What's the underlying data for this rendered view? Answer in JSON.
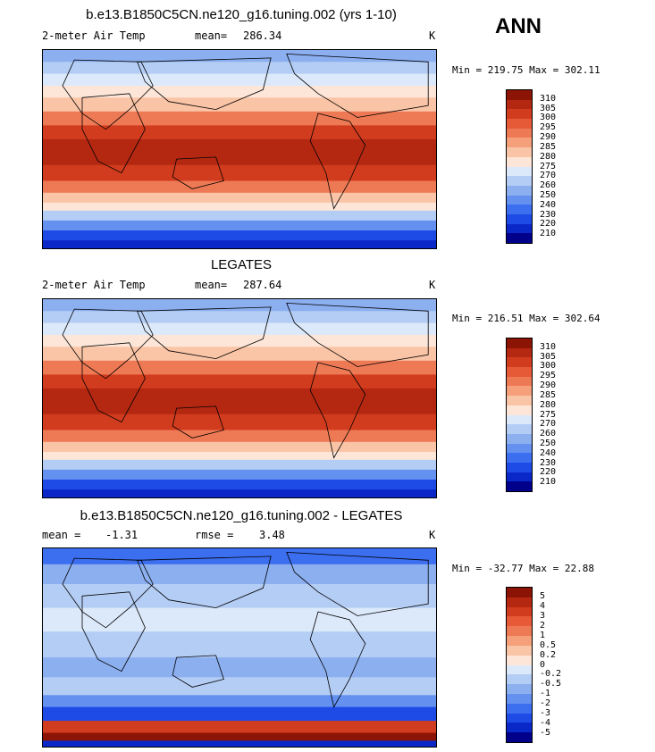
{
  "season": "ANN",
  "temp_colors": [
    "#00008b",
    "#0a28c8",
    "#1e4be6",
    "#3c6ef0",
    "#6490f0",
    "#8caff0",
    "#b4cdf5",
    "#dce9fa",
    "#fde6d8",
    "#fac4a6",
    "#f5a07a",
    "#ee7a55",
    "#e65a37",
    "#d23c1e",
    "#b42812",
    "#8c1405"
  ],
  "diff_colors": [
    "#00008b",
    "#0a28c8",
    "#1e4be6",
    "#3c6ef0",
    "#6490f0",
    "#8caff0",
    "#b4cdf5",
    "#dce9fa",
    "#fde6d8",
    "#fac4a6",
    "#f5a07a",
    "#ee7a55",
    "#e65a37",
    "#d23c1e",
    "#b42812",
    "#8c1405"
  ],
  "chart_data": [
    {
      "type": "heatmap",
      "title": "b.e13.B1850C5CN.ne120_g16.tuning.002 (yrs 1-10)",
      "variable": "2-meter Air Temp",
      "mean_label": "mean=",
      "mean": "286.34",
      "units": "K",
      "min_max": "Min = 219.75 Max = 302.11",
      "min": 219.75,
      "max": 302.11,
      "levels": [
        "310",
        "305",
        "300",
        "295",
        "290",
        "285",
        "280",
        "275",
        "270",
        "260",
        "250",
        "240",
        "230",
        "220",
        "210"
      ]
    },
    {
      "type": "heatmap",
      "title": "LEGATES",
      "variable": "2-meter Air Temp",
      "mean_label": "mean=",
      "mean": "287.64",
      "units": "K",
      "min_max": "Min = 216.51 Max = 302.64",
      "min": 216.51,
      "max": 302.64,
      "levels": [
        "310",
        "305",
        "300",
        "295",
        "290",
        "285",
        "280",
        "275",
        "270",
        "260",
        "250",
        "240",
        "230",
        "220",
        "210"
      ]
    },
    {
      "type": "heatmap",
      "title": "b.e13.B1850C5CN.ne120_g16.tuning.002 - LEGATES",
      "mean_label": "mean =",
      "mean": "-1.31",
      "rmse_label": "rmse =",
      "rmse": "3.48",
      "units": "K",
      "min_max": "Min = -32.77 Max =  22.88",
      "min": -32.77,
      "max": 22.88,
      "levels": [
        "5",
        "4",
        "3",
        "2",
        "1",
        "0.5",
        "0.2",
        "0",
        "-0.2",
        "-0.5",
        "-1",
        "-2",
        "-3",
        "-4",
        "-5"
      ]
    }
  ]
}
